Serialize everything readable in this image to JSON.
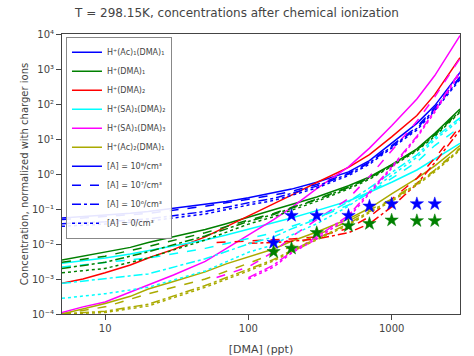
{
  "chart_data": {
    "type": "line",
    "title": "T = 298.15K, concentrations after chemical ionization",
    "xlabel": "[DMA] (ppt)",
    "ylabel": "Concentration, normalized with charger ions",
    "log": true,
    "grid": false,
    "legend": "upper left",
    "xlim": [
      5,
      3000
    ],
    "ylim": [
      0.0001,
      10000
    ],
    "xticks": [
      10,
      100,
      1000
    ],
    "yticks": [
      {
        "value": 0.0001,
        "label": "10⁻⁴"
      },
      {
        "value": 0.001,
        "label": "10⁻³"
      },
      {
        "value": 0.01,
        "label": "10⁻²"
      },
      {
        "value": 0.1,
        "label": "10⁻¹"
      },
      {
        "value": 1,
        "label": "10⁰"
      },
      {
        "value": 10,
        "label": "10¹"
      },
      {
        "value": 100,
        "label": "10²"
      },
      {
        "value": 1000,
        "label": "10³"
      },
      {
        "value": 10000,
        "label": "10⁴"
      }
    ],
    "legend_entries": [
      {
        "name": "H⁺(Ac)₁(DMA)₁",
        "color": "blue",
        "line_style": "solid"
      },
      {
        "name": "H⁺(DMA)₁",
        "color": "green",
        "line_style": "solid"
      },
      {
        "name": "H⁺(DMA)₂",
        "color": "red",
        "line_style": "solid"
      },
      {
        "name": "H⁺(SA)₁(DMA)₂",
        "color": "cyan",
        "line_style": "solid"
      },
      {
        "name": "H⁺(SA)₁(DMA)₃",
        "color": "magenta",
        "line_style": "solid"
      },
      {
        "name": "H⁺(Ac)₂(DMA)₁",
        "color": "#aaaa00",
        "line_style": "solid"
      },
      {
        "name": "[A] = 10⁸/cm³",
        "color": "blue",
        "line_style": "solid"
      },
      {
        "name": "[A] = 10⁷/cm³",
        "color": "blue",
        "line_style": "dash"
      },
      {
        "name": "[A] = 10⁶/cm³",
        "color": "blue",
        "line_style": "dashdot"
      },
      {
        "name": "[A] = 0/cm³",
        "color": "blue",
        "line_style": "dot"
      }
    ],
    "series": [
      {
        "color": "blue",
        "line_style": "solid",
        "x": [
          5,
          7,
          10,
          15,
          20,
          30,
          50,
          70,
          100,
          150,
          200,
          300,
          500,
          700,
          1000,
          1500,
          2000,
          3000
        ],
        "values": [
          0.055,
          0.06,
          0.065,
          0.075,
          0.085,
          0.105,
          0.135,
          0.165,
          0.21,
          0.29,
          0.37,
          0.58,
          1.15,
          2.4,
          7.5,
          28,
          90,
          800
        ]
      },
      {
        "color": "green",
        "line_style": "solid",
        "x": [
          5,
          7,
          10,
          15,
          20,
          30,
          50,
          70,
          100,
          150,
          200,
          300,
          500,
          700,
          1000,
          1500,
          2000,
          3000
        ],
        "values": [
          0.0035,
          0.0045,
          0.006,
          0.008,
          0.011,
          0.016,
          0.026,
          0.038,
          0.058,
          0.092,
          0.13,
          0.22,
          0.46,
          0.82,
          1.85,
          5.2,
          14.5,
          72
        ]
      },
      {
        "color": "red",
        "line_style": "solid",
        "x": [
          5,
          7,
          10,
          15,
          20,
          30,
          50,
          70,
          100,
          150,
          200,
          300,
          500,
          700,
          1000,
          1500,
          2000,
          3000
        ],
        "values": [
          0.00075,
          0.001,
          0.0015,
          0.0025,
          0.004,
          0.007,
          0.016,
          0.031,
          0.062,
          0.135,
          0.25,
          0.57,
          1.55,
          3.6,
          11.5,
          47,
          185,
          2100
        ]
      },
      {
        "color": "cyan",
        "line_style": "solid",
        "x": [
          5,
          7,
          10,
          15,
          20,
          30,
          50,
          70,
          100,
          150,
          200,
          300,
          500,
          700,
          1000,
          1500,
          2000,
          3000
        ],
        "values": [
          0.0028,
          0.0033,
          0.004,
          0.0052,
          0.0065,
          0.0085,
          0.013,
          0.018,
          0.026,
          0.04,
          0.055,
          0.09,
          0.17,
          0.3,
          0.58,
          1.3,
          2.7,
          7.5
        ]
      },
      {
        "color": "magenta",
        "line_style": "solid",
        "x": [
          5,
          7,
          10,
          15,
          20,
          30,
          50,
          70,
          100,
          150,
          200,
          300,
          500,
          700,
          1000,
          1500,
          2000,
          3000
        ],
        "values": [
          0.00011,
          0.00016,
          0.00022,
          0.00042,
          0.00065,
          0.0013,
          0.0032,
          0.0075,
          0.018,
          0.05,
          0.11,
          0.38,
          1.6,
          5.5,
          24,
          140,
          650,
          9000
        ]
      },
      {
        "color": "#aaaa00",
        "line_style": "solid",
        "x": [
          5,
          7,
          10,
          15,
          20,
          30,
          50,
          70,
          100,
          150,
          200,
          300,
          500,
          700,
          1000,
          1500,
          2000,
          3000
        ],
        "values": [
          0.0001,
          0.00014,
          0.0002,
          0.00032,
          0.00052,
          0.00085,
          0.0016,
          0.0027,
          0.0042,
          0.0072,
          0.012,
          0.022,
          0.052,
          0.105,
          0.27,
          0.75,
          1.7,
          6.5
        ]
      },
      {
        "color": "blue",
        "line_style": "dash",
        "x": [
          5,
          10,
          20,
          50,
          100,
          150,
          200,
          300,
          500,
          700,
          1000,
          1500,
          2000,
          3000
        ],
        "values": [
          0.05,
          0.06,
          0.075,
          0.12,
          0.19,
          0.25,
          0.32,
          0.5,
          1.05,
          2.2,
          6.5,
          22,
          80,
          600
        ]
      },
      {
        "color": "green",
        "line_style": "dash",
        "x": [
          5,
          10,
          20,
          50,
          100,
          150,
          200,
          300,
          500,
          700,
          1000,
          1500,
          2000,
          3000
        ],
        "values": [
          0.003,
          0.0045,
          0.0085,
          0.021,
          0.048,
          0.075,
          0.11,
          0.19,
          0.42,
          0.78,
          1.8,
          5.0,
          13.5,
          65
        ]
      },
      {
        "color": "red",
        "line_style": "dash",
        "x": [
          60,
          100,
          150,
          200,
          300,
          500,
          700,
          1000,
          1500,
          2000,
          3000
        ],
        "values": [
          0.011,
          0.012,
          0.013,
          0.014,
          0.016,
          0.028,
          0.06,
          0.19,
          0.75,
          2.8,
          23
        ]
      },
      {
        "color": "cyan",
        "line_style": "dash",
        "x": [
          5,
          10,
          20,
          50,
          100,
          150,
          200,
          300,
          500,
          700,
          1000,
          1500,
          2000,
          3000
        ],
        "values": [
          0.0022,
          0.003,
          0.004,
          0.0075,
          0.014,
          0.021,
          0.032,
          0.055,
          0.13,
          0.29,
          0.75,
          2.2,
          6.5,
          22
        ]
      },
      {
        "color": "magenta",
        "line_style": "dash",
        "x": [
          60,
          100,
          150,
          200,
          300,
          500,
          700,
          1000,
          1500,
          2000,
          3000
        ],
        "values": [
          0.0011,
          0.0022,
          0.006,
          0.016,
          0.05,
          0.2,
          0.85,
          4.5,
          32,
          160,
          2000
        ]
      },
      {
        "color": "#aaaa00",
        "line_style": "dash",
        "x": [
          5,
          10,
          20,
          50,
          100,
          150,
          200,
          300,
          500,
          700,
          1000,
          1500,
          2000,
          3000
        ],
        "values": [
          0.0001,
          0.00016,
          0.00038,
          0.001,
          0.0028,
          0.0052,
          0.0085,
          0.018,
          0.045,
          0.095,
          0.19,
          0.55,
          1.3,
          5.5
        ]
      },
      {
        "color": "blue",
        "line_style": "dashdot",
        "x": [
          5,
          10,
          20,
          50,
          100,
          150,
          200,
          300,
          500,
          700,
          1000,
          1500,
          2000,
          3000
        ],
        "values": [
          0.038,
          0.043,
          0.052,
          0.085,
          0.15,
          0.2,
          0.28,
          0.45,
          1.0,
          2.1,
          6.0,
          20,
          72,
          550
        ]
      },
      {
        "color": "green",
        "line_style": "dashdot",
        "x": [
          5,
          10,
          20,
          50,
          100,
          150,
          200,
          300,
          500,
          700,
          1000,
          1500,
          2000,
          3000
        ],
        "values": [
          0.002,
          0.003,
          0.006,
          0.017,
          0.044,
          0.07,
          0.105,
          0.185,
          0.41,
          0.77,
          1.75,
          4.9,
          13,
          62
        ]
      },
      {
        "color": "red",
        "line_style": "dashdot",
        "x": [
          100,
          150,
          200,
          300,
          500,
          700,
          1000,
          1500,
          2000,
          3000
        ],
        "values": [
          0.0105,
          0.011,
          0.012,
          0.014,
          0.021,
          0.038,
          0.115,
          0.52,
          2.1,
          18
        ]
      },
      {
        "color": "cyan",
        "line_style": "dashdot",
        "x": [
          5,
          10,
          20,
          50,
          100,
          150,
          200,
          300,
          500,
          700,
          1000,
          1500,
          2000,
          3000
        ],
        "values": [
          0.00075,
          0.001,
          0.0014,
          0.0038,
          0.01,
          0.016,
          0.027,
          0.052,
          0.16,
          0.4,
          1.1,
          3.5,
          11,
          40
        ]
      },
      {
        "color": "magenta",
        "line_style": "dashdot",
        "x": [
          100,
          150,
          200,
          300,
          500,
          700,
          1000,
          1500,
          2000,
          3000
        ],
        "values": [
          0.0011,
          0.0025,
          0.006,
          0.016,
          0.065,
          0.3,
          1.6,
          12,
          65,
          850
        ]
      },
      {
        "color": "#aaaa00",
        "line_style": "dashdot",
        "x": [
          5,
          10,
          20,
          50,
          100,
          150,
          200,
          300,
          500,
          700,
          1000,
          1500,
          2000,
          3000
        ],
        "values": [
          0.0001,
          0.00012,
          0.00019,
          0.00065,
          0.0019,
          0.0036,
          0.0065,
          0.014,
          0.038,
          0.085,
          0.18,
          0.52,
          1.25,
          5.2
        ]
      },
      {
        "color": "blue",
        "line_style": "dot",
        "x": [
          5,
          10,
          20,
          50,
          100,
          150,
          200,
          300,
          500,
          700,
          1000,
          1500,
          2000,
          3000
        ],
        "values": [
          0.032,
          0.037,
          0.045,
          0.072,
          0.13,
          0.175,
          0.245,
          0.4,
          0.9,
          1.9,
          5.5,
          18,
          65,
          500
        ]
      },
      {
        "color": "green",
        "line_style": "dot",
        "x": [
          5,
          10,
          20,
          50,
          100,
          150,
          200,
          300,
          500,
          700,
          1000,
          1500,
          2000,
          3000
        ],
        "values": [
          0.0015,
          0.002,
          0.004,
          0.013,
          0.037,
          0.06,
          0.092,
          0.165,
          0.375,
          0.71,
          1.65,
          4.6,
          12,
          58
        ]
      },
      {
        "color": "cyan",
        "line_style": "dot",
        "x": [
          5,
          10,
          20,
          50,
          100,
          150,
          200,
          300,
          500,
          700,
          1000,
          1500,
          2000,
          3000
        ],
        "values": [
          0.00028,
          0.00038,
          0.00058,
          0.0017,
          0.0058,
          0.0095,
          0.018,
          0.038,
          0.12,
          0.32,
          0.9,
          3.0,
          9.5,
          35
        ]
      },
      {
        "color": "magenta",
        "line_style": "dot",
        "x": [
          100,
          150,
          200,
          300,
          500,
          700,
          1000,
          1500,
          2000,
          3000
        ],
        "values": [
          0.001,
          0.0022,
          0.0055,
          0.014,
          0.057,
          0.27,
          1.45,
          11,
          58,
          750
        ]
      },
      {
        "color": "#aaaa00",
        "line_style": "dot",
        "x": [
          5,
          10,
          20,
          50,
          100,
          150,
          200,
          300,
          500,
          700,
          1000,
          1500,
          2000,
          3000
        ],
        "values": [
          0.0001,
          0.00011,
          0.00017,
          0.00058,
          0.0017,
          0.0033,
          0.006,
          0.013,
          0.035,
          0.078,
          0.165,
          0.48,
          1.15,
          4.8
        ]
      },
      {
        "type": "scatter",
        "marker": "star",
        "color": "blue",
        "x": [
          150,
          200,
          300,
          500,
          700,
          1000,
          1500,
          2000
        ],
        "values": [
          0.011,
          0.065,
          0.065,
          0.065,
          0.12,
          0.14,
          0.14,
          0.14
        ]
      },
      {
        "type": "scatter",
        "marker": "star",
        "color": "green",
        "x": [
          150,
          200,
          300,
          500,
          700,
          1000,
          1500,
          2000
        ],
        "values": [
          0.006,
          0.0075,
          0.021,
          0.033,
          0.038,
          0.048,
          0.046,
          0.046
        ]
      }
    ]
  }
}
